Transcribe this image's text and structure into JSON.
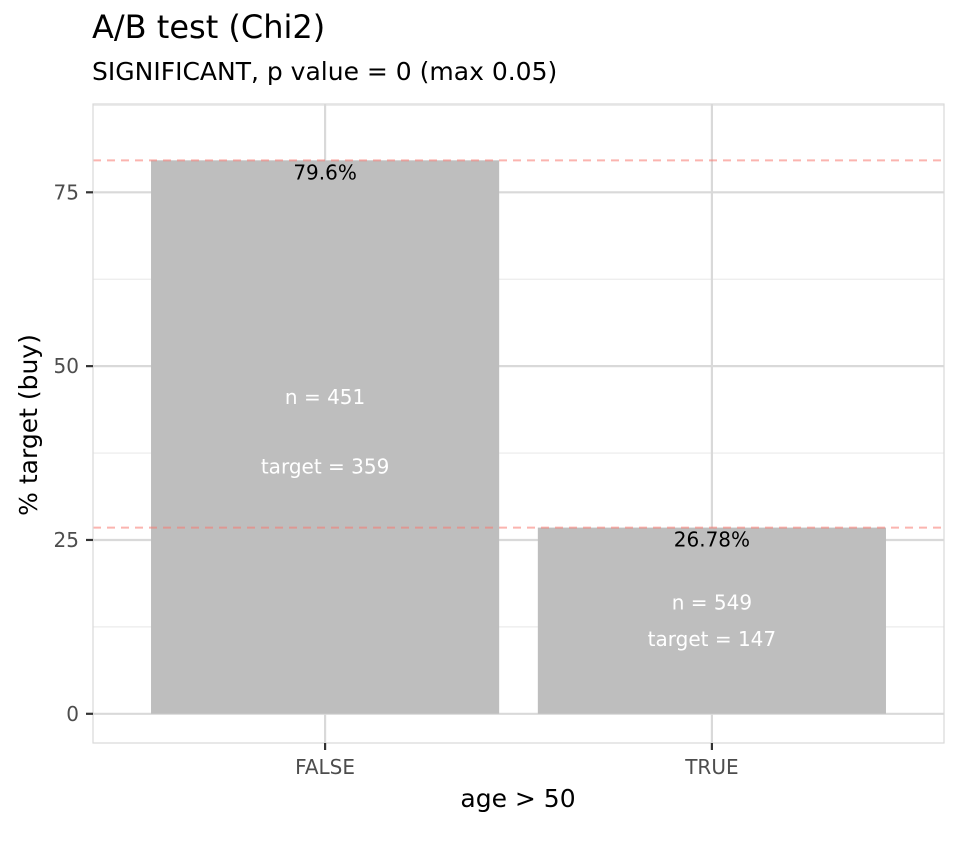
{
  "chart_data": {
    "type": "bar",
    "title": "A/B test (Chi2)",
    "subtitle": "SIGNIFICANT, p value = 0 (max 0.05)",
    "xlabel": "age > 50",
    "ylabel": "% target (buy)",
    "categories": [
      "FALSE",
      "TRUE"
    ],
    "values": [
      79.6,
      26.78
    ],
    "value_labels": [
      "79.6%",
      "26.78%"
    ],
    "n_labels": [
      "n = 451",
      "n = 549"
    ],
    "target_labels": [
      "target = 359",
      "target = 147"
    ],
    "reference_lines": [
      79.6,
      26.78
    ],
    "ylim": [
      -4.2,
      87.7
    ],
    "yticks": [
      0,
      25,
      50,
      75
    ],
    "ytick_labels": [
      "0",
      "25",
      "50",
      "75"
    ],
    "grid": true,
    "legend": "none",
    "colors": {
      "bar": "#bebebe",
      "reference_line": "#f8766d",
      "panel_border": "#d9d9d9",
      "grid_major": "#d9d9d9",
      "grid_minor": "#ebebeb",
      "axis_text": "#4d4d4d",
      "value_label": "#000000",
      "inner_label": "#ffffff"
    }
  }
}
